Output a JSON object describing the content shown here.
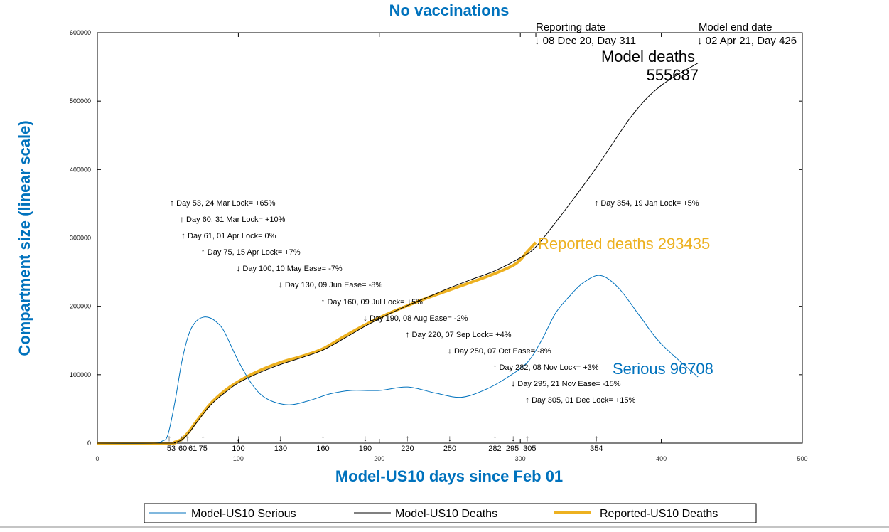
{
  "chart_data": {
    "type": "line",
    "title": "No vaccinations",
    "xlabel": "Model-US10 days since Feb 01",
    "ylabel": "Compartment size (linear scale)",
    "xlim": [
      0,
      500
    ],
    "ylim": [
      0,
      600000
    ],
    "x_ticks": [
      0,
      100,
      200,
      300,
      400,
      500
    ],
    "y_ticks": [
      0,
      100000,
      200000,
      300000,
      400000,
      500000,
      600000
    ],
    "grid": false,
    "legend_position": "bottom",
    "colors": {
      "serious": "#0072BD",
      "deaths": "#000000",
      "reported": "#EDB120",
      "title": "#0072BD"
    },
    "series": [
      {
        "name": "Model-US10 Serious",
        "color": "#0072BD",
        "x": [
          0,
          40,
          46,
          50,
          55,
          60,
          65,
          70,
          75,
          80,
          85,
          90,
          100,
          110,
          120,
          135,
          150,
          165,
          180,
          200,
          220,
          240,
          258,
          275,
          290,
          305,
          315,
          325,
          335,
          345,
          357,
          370,
          385,
          400,
          426
        ],
        "y": [
          0,
          0,
          3000,
          12000,
          60000,
          120000,
          160000,
          178000,
          184000,
          183000,
          176000,
          163000,
          120000,
          85000,
          65000,
          56000,
          62000,
          72000,
          77000,
          77000,
          82000,
          73000,
          67000,
          78000,
          95000,
          118000,
          150000,
          190000,
          215000,
          235000,
          245000,
          226000,
          185000,
          145000,
          96708
        ]
      },
      {
        "name": "Model-US10 Deaths",
        "color": "#000000",
        "x": [
          0,
          50,
          55,
          60,
          65,
          70,
          80,
          90,
          100,
          115,
          130,
          145,
          160,
          175,
          190,
          205,
          220,
          235,
          250,
          265,
          282,
          300,
          311,
          330,
          354,
          380,
          400,
          426
        ],
        "y": [
          0,
          0,
          1000,
          5000,
          15000,
          29000,
          55000,
          73000,
          88000,
          103000,
          115000,
          125000,
          136000,
          153000,
          171000,
          187000,
          201000,
          214000,
          227000,
          239000,
          252000,
          271000,
          287000,
          336000,
          403000,
          481000,
          523000,
          555687
        ]
      },
      {
        "name": "Reported-US10 Deaths",
        "color": "#EDB120",
        "x": [
          0,
          50,
          55,
          60,
          65,
          70,
          80,
          90,
          100,
          115,
          130,
          145,
          160,
          175,
          190,
          205,
          220,
          235,
          250,
          265,
          282,
          295,
          300,
          305,
          311
        ],
        "y": [
          0,
          0,
          1500,
          6000,
          17000,
          31000,
          57000,
          76000,
          90000,
          106000,
          118000,
          127000,
          138000,
          156000,
          173000,
          188000,
          201000,
          213000,
          224000,
          235000,
          248000,
          260000,
          268000,
          280000,
          293435
        ]
      }
    ],
    "annotations": [
      {
        "day": 53,
        "dir": "up",
        "text": "Day 53, 24 Mar Lock= +65%"
      },
      {
        "day": 60,
        "dir": "up",
        "text": "Day 60, 31 Mar Lock= +10%"
      },
      {
        "day": 61,
        "dir": "up",
        "text": "Day 61, 01 Apr Lock= 0%"
      },
      {
        "day": 75,
        "dir": "up",
        "text": "Day 75, 15 Apr Lock= +7%"
      },
      {
        "day": 100,
        "dir": "down",
        "text": "Day 100, 10 May Ease= -7%"
      },
      {
        "day": 130,
        "dir": "down",
        "text": "Day 130, 09 Jun Ease= -8%"
      },
      {
        "day": 160,
        "dir": "up",
        "text": "Day 160, 09 Jul Lock= +5%"
      },
      {
        "day": 190,
        "dir": "down",
        "text": "Day 190, 08 Aug Ease= -2%"
      },
      {
        "day": 220,
        "dir": "up",
        "text": "Day 220, 07 Sep Lock= +4%"
      },
      {
        "day": 250,
        "dir": "down",
        "text": "Day 250, 07 Oct Ease= -8%"
      },
      {
        "day": 282,
        "dir": "up",
        "text": "Day 282, 08 Nov Lock= +3%"
      },
      {
        "day": 295,
        "dir": "down",
        "text": "Day 295, 21 Nov Ease= -15%"
      },
      {
        "day": 305,
        "dir": "up",
        "text": "Day 305, 01 Dec Lock= +15%"
      },
      {
        "day": 354,
        "dir": "up",
        "text": "Day 354, 19 Jan Lock= +5%"
      }
    ],
    "labels": {
      "model_deaths": "Model deaths",
      "model_deaths_value": "555687",
      "reported_deaths": "Reported deaths 293435",
      "serious": "Serious 96708",
      "reporting_date_title": "Reporting date",
      "reporting_date": "↓ 08 Dec 20, Day 311",
      "model_end_title": "Model end date",
      "model_end": "↓ 02 Apr 21, Day 426"
    },
    "arrows": {
      "up": "↑",
      "down": "↓"
    }
  }
}
